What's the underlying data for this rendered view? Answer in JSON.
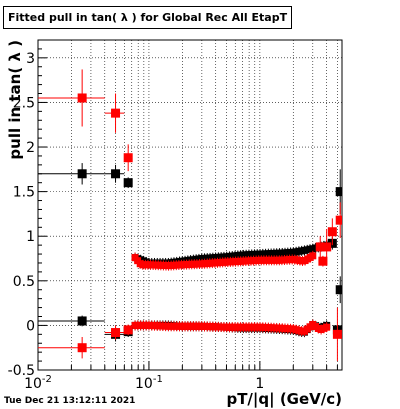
{
  "title": "Fitted pull in tan( λ ) for Global Rec All EtapT",
  "timestamp": "Tue Dec 21 13:12:11 2021",
  "chart_data": {
    "type": "scatter",
    "title": "Fitted pull in tan( λ ) for Global Rec All EtapT",
    "xlabel": "pT/|q| (GeV/c)",
    "ylabel": "pull in tan( λ )",
    "xscale": "log",
    "xlim": [
      0.01,
      5.5
    ],
    "ylim": [
      -0.5,
      3.2
    ],
    "grid": true,
    "x_ticks": [
      {
        "v": 0.01,
        "label": "10",
        "sup": "-2"
      },
      {
        "v": 0.1,
        "label": "10",
        "sup": "-1"
      },
      {
        "v": 1,
        "label": "1",
        "sup": ""
      }
    ],
    "y_ticks": [
      {
        "v": -0.5,
        "label": "-0.5"
      },
      {
        "v": 0,
        "label": "0"
      },
      {
        "v": 0.5,
        "label": "0.5"
      },
      {
        "v": 1,
        "label": "1"
      },
      {
        "v": 1.5,
        "label": "1.5"
      },
      {
        "v": 2,
        "label": "2"
      },
      {
        "v": 2.5,
        "label": "2.5"
      },
      {
        "v": 3,
        "label": "3"
      }
    ],
    "series": [
      {
        "color": "#000000",
        "points": [
          {
            "x": 0.025,
            "y": 1.7,
            "xlo": 0.01,
            "xhi": 0.04,
            "err": 0.12
          },
          {
            "x": 0.05,
            "y": 1.7,
            "xlo": 0.04,
            "xhi": 0.06,
            "err": 0.1
          },
          {
            "x": 0.065,
            "y": 1.6,
            "xlo": 0.06,
            "xhi": 0.07,
            "err": 0.06
          },
          {
            "x": 0.025,
            "y": 0.05,
            "xlo": 0.01,
            "xhi": 0.04,
            "err": 0.06
          },
          {
            "x": 0.05,
            "y": -0.1,
            "xlo": 0.04,
            "xhi": 0.06,
            "err": 0.08
          },
          {
            "x": 0.065,
            "y": -0.07,
            "xlo": 0.06,
            "xhi": 0.07,
            "err": 0.06
          },
          {
            "x": 4.5,
            "y": 0.92,
            "err": 0.07
          },
          {
            "x": 5.3,
            "y": 1.5,
            "err": 0.25
          },
          {
            "x": 5.3,
            "y": 0.4,
            "err": 0.15
          },
          {
            "x": 5.0,
            "y": -0.05,
            "err": 0.05
          }
        ],
        "band_upper": {
          "x": [
            0.075,
            0.1,
            0.15,
            0.2,
            0.3,
            0.5,
            0.7,
            1.0,
            1.5,
            2.0,
            2.5,
            3.0,
            3.5,
            4.0
          ],
          "y": [
            0.76,
            0.7,
            0.7,
            0.72,
            0.75,
            0.77,
            0.79,
            0.8,
            0.81,
            0.82,
            0.84,
            0.86,
            0.88,
            0.9
          ]
        },
        "band_lower": {
          "x": [
            0.075,
            0.1,
            0.15,
            0.2,
            0.3,
            0.5,
            0.7,
            1.0,
            1.5,
            2.0,
            2.5,
            3.0,
            3.5,
            4.0
          ],
          "y": [
            0.0,
            0.0,
            0.0,
            -0.01,
            -0.01,
            -0.02,
            -0.03,
            -0.03,
            -0.04,
            -0.05,
            -0.08,
            0.01,
            -0.03,
            0.0
          ]
        }
      },
      {
        "color": "#ff0000",
        "points": [
          {
            "x": 0.025,
            "y": 2.55,
            "xlo": 0.01,
            "xhi": 0.04,
            "err": 0.32
          },
          {
            "x": 0.05,
            "y": 2.38,
            "xlo": 0.04,
            "xhi": 0.06,
            "err": 0.22
          },
          {
            "x": 0.065,
            "y": 1.88,
            "xlo": 0.06,
            "xhi": 0.07,
            "err": 0.15
          },
          {
            "x": 0.025,
            "y": -0.25,
            "xlo": 0.01,
            "xhi": 0.04,
            "err": 0.12
          },
          {
            "x": 0.05,
            "y": -0.08,
            "xlo": 0.04,
            "xhi": 0.06,
            "err": 0.08
          },
          {
            "x": 0.065,
            "y": -0.05,
            "xlo": 0.06,
            "xhi": 0.07,
            "err": 0.06
          },
          {
            "x": 3.5,
            "y": 0.88,
            "err": 0.12
          },
          {
            "x": 4.0,
            "y": 0.88,
            "err": 0.2
          },
          {
            "x": 4.5,
            "y": 1.05,
            "err": 0.15
          },
          {
            "x": 5.3,
            "y": 1.18,
            "err": 0.2
          },
          {
            "x": 5.0,
            "y": -0.1,
            "err": 0.3
          },
          {
            "x": 3.7,
            "y": 0.72,
            "err": 0.06
          }
        ],
        "band_upper": {
          "x": [
            0.075,
            0.085,
            0.1,
            0.15,
            0.2,
            0.3,
            0.5,
            0.7,
            1.0,
            1.5,
            2.0,
            2.5,
            3.0
          ],
          "y": [
            0.76,
            0.68,
            0.68,
            0.67,
            0.68,
            0.69,
            0.71,
            0.72,
            0.73,
            0.73,
            0.74,
            0.72,
            0.78
          ]
        },
        "band_lower": {
          "x": [
            0.075,
            0.1,
            0.15,
            0.2,
            0.3,
            0.5,
            0.7,
            1.0,
            1.5,
            2.0,
            2.5,
            3.0,
            3.5,
            4.0
          ],
          "y": [
            0.0,
            0.0,
            -0.01,
            -0.01,
            -0.01,
            -0.02,
            -0.02,
            -0.02,
            -0.03,
            -0.04,
            -0.07,
            0.01,
            -0.05,
            -0.02
          ]
        }
      }
    ]
  }
}
